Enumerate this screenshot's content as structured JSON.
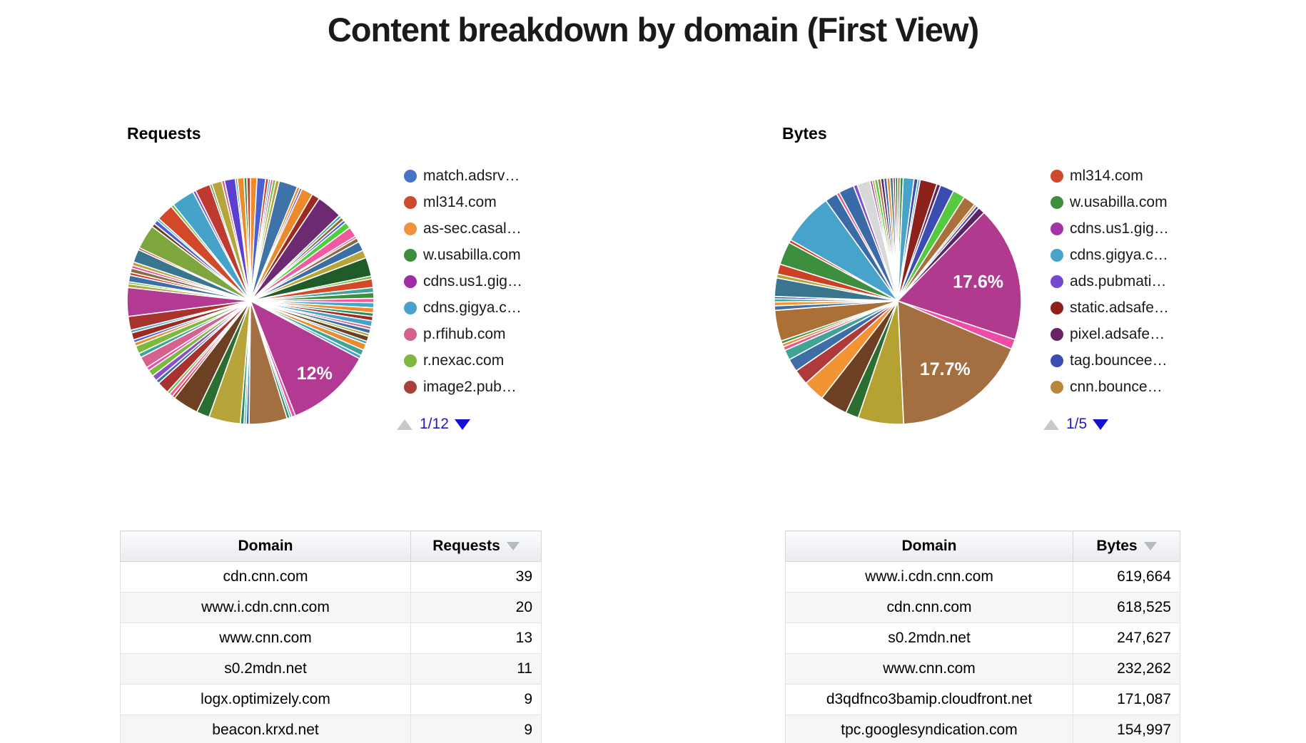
{
  "page_title": "Content breakdown by domain (First View)",
  "requests_section": {
    "label": "Requests",
    "legend": {
      "items": [
        {
          "label": "match.adsrv…",
          "color": "#4573c8"
        },
        {
          "label": "ml314.com",
          "color": "#cf4a2c"
        },
        {
          "label": "as-sec.casal…",
          "color": "#f0923e"
        },
        {
          "label": "w.usabilla.com",
          "color": "#3d8f3f"
        },
        {
          "label": "cdns.us1.gig…",
          "color": "#a02ca6"
        },
        {
          "label": "cdns.gigya.c…",
          "color": "#48a3cb"
        },
        {
          "label": "p.rfihub.com",
          "color": "#d5618f"
        },
        {
          "label": "r.nexac.com",
          "color": "#7eb93f"
        },
        {
          "label": "image2.pub…",
          "color": "#a8403a"
        }
      ],
      "page": "1/12"
    }
  },
  "bytes_section": {
    "label": "Bytes",
    "legend": {
      "items": [
        {
          "label": "ml314.com",
          "color": "#cf4a2c"
        },
        {
          "label": "w.usabilla.com",
          "color": "#3d8f3f"
        },
        {
          "label": "cdns.us1.gig…",
          "color": "#a234a8"
        },
        {
          "label": "cdns.gigya.c…",
          "color": "#48a3cb"
        },
        {
          "label": "ads.pubmati…",
          "color": "#7448cf"
        },
        {
          "label": "static.adsafe…",
          "color": "#8e211b"
        },
        {
          "label": "pixel.adsafe…",
          "color": "#6a2465"
        },
        {
          "label": "tag.bouncee…",
          "color": "#3b4cb3"
        },
        {
          "label": "cnn.bounce…",
          "color": "#b9863d"
        }
      ],
      "page": "1/5"
    }
  },
  "requests_table": {
    "headers": [
      "Domain",
      "Requests"
    ],
    "rows": [
      [
        "cdn.cnn.com",
        "39"
      ],
      [
        "www.i.cdn.cnn.com",
        "20"
      ],
      [
        "www.cnn.com",
        "13"
      ],
      [
        "s0.2mdn.net",
        "11"
      ],
      [
        "logx.optimizely.com",
        "9"
      ],
      [
        "beacon.krxd.net",
        "9"
      ]
    ]
  },
  "bytes_table": {
    "headers": [
      "Domain",
      "Bytes"
    ],
    "rows": [
      [
        "www.i.cdn.cnn.com",
        "619,664"
      ],
      [
        "cdn.cnn.com",
        "618,525"
      ],
      [
        "s0.2mdn.net",
        "247,627"
      ],
      [
        "www.cnn.com",
        "232,262"
      ],
      [
        "d3qdfnco3bamip.cloudfront.net",
        "171,087"
      ],
      [
        "tpc.googlesyndication.com",
        "154,997"
      ]
    ]
  },
  "chart_data": [
    {
      "type": "pie",
      "title": "Requests",
      "legend_position": "right",
      "legend_page": "1/12",
      "visible_labels": [
        "12%"
      ],
      "label_radius": 0.78,
      "slices": [
        {
          "p": 0.9,
          "c": "#ec8a2e"
        },
        {
          "p": 1.2,
          "c": "#4a5fd2"
        },
        {
          "p": 0.4,
          "c": "#d23b2a"
        },
        {
          "p": 0.3,
          "c": "#3fa8c9"
        },
        {
          "p": 0.3,
          "c": "#d23a8f"
        },
        {
          "p": 0.4,
          "c": "#6fbf3a"
        },
        {
          "p": 0.5,
          "c": "#b7a43a"
        },
        {
          "p": 2.6,
          "c": "#3f72a8"
        },
        {
          "p": 0.4,
          "c": "#ec8a2e"
        },
        {
          "p": 0.3,
          "c": "#5b3fd0"
        },
        {
          "p": 1.6,
          "c": "#ec8a2e"
        },
        {
          "p": 1.1,
          "c": "#9c2a20"
        },
        {
          "p": 3.6,
          "c": "#6d2a70"
        },
        {
          "p": 0.4,
          "c": "#3fa39a"
        },
        {
          "p": 0.5,
          "c": "#8a6a3f"
        },
        {
          "p": 0.4,
          "c": "#4a5fd2"
        },
        {
          "p": 0.9,
          "c": "#4ecf3c"
        },
        {
          "p": 1.4,
          "c": "#ef5aa0"
        },
        {
          "p": 0.3,
          "c": "#d5618f"
        },
        {
          "p": 0.6,
          "c": "#8a6a3f"
        },
        {
          "p": 1.3,
          "c": "#3a6fa5"
        },
        {
          "p": 1.1,
          "c": "#b7a43a"
        },
        {
          "p": 2.6,
          "c": "#1f5c2a"
        },
        {
          "p": 0.4,
          "c": "#6fbf3a"
        },
        {
          "p": 1.2,
          "c": "#d2492a"
        },
        {
          "p": 0.7,
          "c": "#3fa39a"
        },
        {
          "p": 0.8,
          "c": "#3d8f3f"
        },
        {
          "p": 0.6,
          "c": "#ef5aa0"
        },
        {
          "p": 0.7,
          "c": "#3fa8c9"
        },
        {
          "p": 0.7,
          "c": "#ec8a2e"
        },
        {
          "p": 0.5,
          "c": "#2a8c57"
        },
        {
          "p": 0.6,
          "c": "#9c2a20"
        },
        {
          "p": 0.8,
          "c": "#45a2c9"
        },
        {
          "p": 0.4,
          "c": "#d5618f"
        },
        {
          "p": 0.6,
          "c": "#3a6fa5"
        },
        {
          "p": 0.4,
          "c": "#b7a43a"
        },
        {
          "p": 0.7,
          "c": "#6d3f23"
        },
        {
          "p": 0.4,
          "c": "#3fa39a"
        },
        {
          "p": 0.9,
          "c": "#ec8a2e"
        },
        {
          "p": 0.8,
          "c": "#3fa39a"
        },
        {
          "p": 0.5,
          "c": "#45a2c9"
        },
        {
          "p": 12.0,
          "c": "#b33a92",
          "label": "12%"
        },
        {
          "p": 0.5,
          "c": "#ee4ca7"
        },
        {
          "p": 0.3,
          "c": "#45a2c9"
        },
        {
          "p": 0.4,
          "c": "#2a8c57"
        },
        {
          "p": 5.3,
          "c": "#a36f41"
        },
        {
          "p": 0.4,
          "c": "#3a6fa5"
        },
        {
          "p": 0.3,
          "c": "#3fa8c9"
        },
        {
          "p": 0.5,
          "c": "#2a8c57"
        },
        {
          "p": 4.4,
          "c": "#b7a43a"
        },
        {
          "p": 1.8,
          "c": "#2a6e31"
        },
        {
          "p": 3.6,
          "c": "#6d3f23"
        },
        {
          "p": 0.4,
          "c": "#d23b2a"
        },
        {
          "p": 0.5,
          "c": "#ef5aa0"
        },
        {
          "p": 0.4,
          "c": "#6fbf3a"
        },
        {
          "p": 1.7,
          "c": "#a8322e"
        },
        {
          "p": 0.5,
          "c": "#3a6fa5"
        },
        {
          "p": 0.8,
          "c": "#8a4fc8"
        },
        {
          "p": 0.9,
          "c": "#7eb93f"
        },
        {
          "p": 0.5,
          "c": "#ee4ca7"
        },
        {
          "p": 1.6,
          "c": "#d5618f"
        },
        {
          "p": 0.6,
          "c": "#3fa39a"
        },
        {
          "p": 1.1,
          "c": "#7eb93f"
        },
        {
          "p": 0.5,
          "c": "#ec8a2e"
        },
        {
          "p": 0.4,
          "c": "#4a5fd2"
        },
        {
          "p": 1.0,
          "c": "#9c2a20"
        },
        {
          "p": 0.4,
          "c": "#3fa8c9"
        },
        {
          "p": 1.9,
          "c": "#a8322e"
        },
        {
          "p": 4.0,
          "c": "#b33a92"
        },
        {
          "p": 0.5,
          "c": "#b7a43a"
        },
        {
          "p": 0.3,
          "c": "#6fbf3a"
        },
        {
          "p": 0.9,
          "c": "#3a6fa5"
        },
        {
          "p": 0.4,
          "c": "#d23b2a"
        },
        {
          "p": 0.6,
          "c": "#8a6a3f"
        },
        {
          "p": 0.4,
          "c": "#ee4ca7"
        },
        {
          "p": 0.5,
          "c": "#b7a43a"
        },
        {
          "p": 1.8,
          "c": "#39758c"
        },
        {
          "p": 0.3,
          "c": "#d23b2a"
        },
        {
          "p": 3.4,
          "c": "#7ea63f"
        },
        {
          "p": 0.5,
          "c": "#6d3f23"
        },
        {
          "p": 0.6,
          "c": "#4a5fd2"
        },
        {
          "p": 0.3,
          "c": "#3fa8c9"
        },
        {
          "p": 2.4,
          "c": "#d2492a"
        },
        {
          "p": 0.4,
          "c": "#6fbf3a"
        },
        {
          "p": 3.2,
          "c": "#45a2c9"
        },
        {
          "p": 0.4,
          "c": "#8a4fc8"
        },
        {
          "p": 2.1,
          "c": "#bf3a30"
        },
        {
          "p": 0.3,
          "c": "#3d8f3f"
        },
        {
          "p": 1.4,
          "c": "#b7a43a"
        },
        {
          "p": 0.4,
          "c": "#d5618f"
        },
        {
          "p": 1.5,
          "c": "#5b3fd0"
        },
        {
          "p": 0.3,
          "c": "#3fa8c9"
        },
        {
          "p": 0.9,
          "c": "#ec8a2e"
        },
        {
          "p": 0.4,
          "c": "#3d8f3f"
        },
        {
          "p": 0.5,
          "c": "#d23b2a"
        }
      ]
    },
    {
      "type": "pie",
      "title": "Bytes",
      "legend_position": "right",
      "legend_page": "1/5",
      "visible_labels": [
        "17.6%",
        "17.7%"
      ],
      "label_radius": 0.67,
      "slices": [
        {
          "p": 0.3,
          "c": "#d23b2a"
        },
        {
          "p": 0.4,
          "c": "#3d8f3f"
        },
        {
          "p": 1.4,
          "c": "#48a3cb"
        },
        {
          "p": 0.5,
          "c": "#3b4cb3"
        },
        {
          "p": 0.3,
          "c": "#48a3cb"
        },
        {
          "p": 2.2,
          "c": "#8e211b"
        },
        {
          "p": 0.5,
          "c": "#5d2366"
        },
        {
          "p": 1.8,
          "c": "#3b4cb3"
        },
        {
          "p": 1.6,
          "c": "#55c93f"
        },
        {
          "p": 1.6,
          "c": "#a9703d"
        },
        {
          "p": 0.3,
          "c": "#ec8a2e"
        },
        {
          "p": 0.4,
          "c": "#3b4cb3"
        },
        {
          "p": 0.9,
          "c": "#5d2366"
        },
        {
          "p": 17.6,
          "c": "#b03a8e",
          "label": "17.6%"
        },
        {
          "p": 1.3,
          "c": "#ee4ca7"
        },
        {
          "p": 17.7,
          "c": "#a36f41",
          "label": "17.7%"
        },
        {
          "p": 5.9,
          "c": "#b5a233"
        },
        {
          "p": 1.7,
          "c": "#2c6e31"
        },
        {
          "p": 3.6,
          "c": "#6d3f23"
        },
        {
          "p": 2.8,
          "c": "#f29334"
        },
        {
          "p": 2.0,
          "c": "#b03a3a"
        },
        {
          "p": 1.7,
          "c": "#3e6ea5"
        },
        {
          "p": 1.3,
          "c": "#41a396"
        },
        {
          "p": 0.5,
          "c": "#e05c8f"
        },
        {
          "p": 0.4,
          "c": "#ec8a2e"
        },
        {
          "p": 0.4,
          "c": "#3d8f3f"
        },
        {
          "p": 4.0,
          "c": "#ab7036"
        },
        {
          "p": 0.6,
          "c": "#3e6ea5"
        },
        {
          "p": 0.5,
          "c": "#f29334"
        },
        {
          "p": 0.4,
          "c": "#41a396"
        },
        {
          "p": 0.3,
          "c": "#3b4cb3"
        },
        {
          "p": 2.4,
          "c": "#39758c"
        },
        {
          "p": 0.5,
          "c": "#b5a233"
        },
        {
          "p": 1.3,
          "c": "#cc4125"
        },
        {
          "p": 3.0,
          "c": "#3d8f3f"
        },
        {
          "p": 0.4,
          "c": "#cc4125"
        },
        {
          "p": 6.8,
          "c": "#48a3cb"
        },
        {
          "p": 1.6,
          "c": "#3a6ba8"
        },
        {
          "p": 0.4,
          "c": "#e05c8f"
        },
        {
          "p": 2.0,
          "c": "#3a6ba8"
        },
        {
          "p": 0.5,
          "c": "#8350c8"
        },
        {
          "p": 1.7,
          "c": "#d8d8d8"
        },
        {
          "p": 0.3,
          "c": "#a234a8"
        },
        {
          "p": 0.3,
          "c": "#b5a233"
        },
        {
          "p": 0.4,
          "c": "#52c93f"
        },
        {
          "p": 0.4,
          "c": "#a9703d"
        },
        {
          "p": 0.4,
          "c": "#5d2366"
        },
        {
          "p": 0.4,
          "c": "#3a6ba8"
        },
        {
          "p": 0.4,
          "c": "#ec8a2e"
        },
        {
          "p": 0.4,
          "c": "#39758c"
        },
        {
          "p": 0.3,
          "c": "#b03a3a"
        },
        {
          "p": 0.3,
          "c": "#2c6e31"
        }
      ]
    },
    {
      "type": "table",
      "title": "Requests by domain",
      "headers": [
        "Domain",
        "Requests"
      ],
      "rows": [
        [
          "cdn.cnn.com",
          39
        ],
        [
          "www.i.cdn.cnn.com",
          20
        ],
        [
          "www.cnn.com",
          13
        ],
        [
          "s0.2mdn.net",
          11
        ],
        [
          "logx.optimizely.com",
          9
        ],
        [
          "beacon.krxd.net",
          9
        ]
      ]
    },
    {
      "type": "table",
      "title": "Bytes by domain",
      "headers": [
        "Domain",
        "Bytes"
      ],
      "rows": [
        [
          "www.i.cdn.cnn.com",
          619664
        ],
        [
          "cdn.cnn.com",
          618525
        ],
        [
          "s0.2mdn.net",
          247627
        ],
        [
          "www.cnn.com",
          232262
        ],
        [
          "d3qdfnco3bamip.cloudfront.net",
          171087
        ],
        [
          "tpc.googlesyndication.com",
          154997
        ]
      ]
    }
  ]
}
